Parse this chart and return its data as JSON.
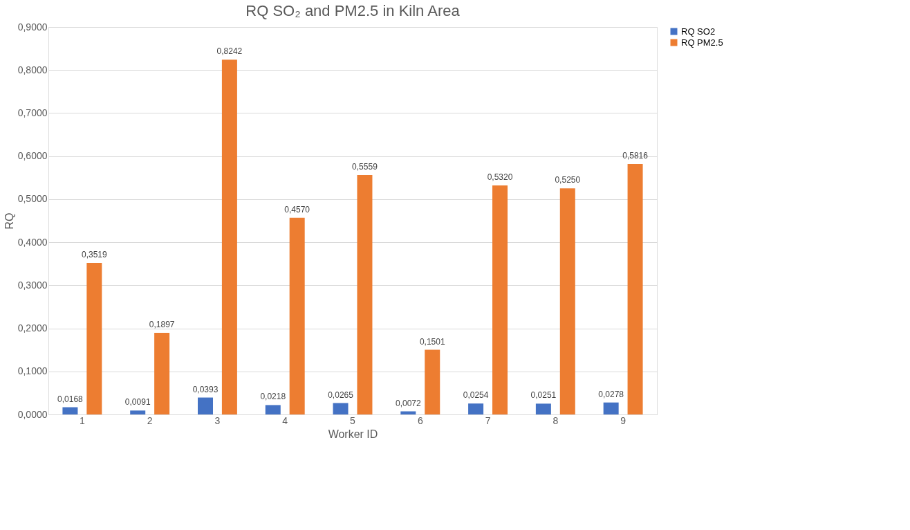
{
  "chart_data": {
    "type": "bar",
    "title": "RQ SO₂ and PM2.5 in Kiln Area",
    "xlabel": "Worker ID",
    "ylabel": "RQ",
    "categories": [
      "1",
      "2",
      "3",
      "4",
      "5",
      "6",
      "7",
      "8",
      "9"
    ],
    "series": [
      {
        "name": "RQ SO2",
        "color": "#4472c4",
        "values": [
          0.0168,
          0.0091,
          0.0393,
          0.0218,
          0.0265,
          0.0072,
          0.0254,
          0.0251,
          0.0278
        ],
        "value_labels": [
          "0,0168",
          "0,0091",
          "0,0393",
          "0,0218",
          "0,0265",
          "0,0072",
          "0,0254",
          "0,0251",
          "0,0278"
        ]
      },
      {
        "name": "RQ PM2.5",
        "color": "#ed7d31",
        "values": [
          0.3519,
          0.1897,
          0.8242,
          0.457,
          0.5559,
          0.1501,
          0.532,
          0.525,
          0.5816
        ],
        "value_labels": [
          "0,3519",
          "0,1897",
          "0,8242",
          "0,4570",
          "0,5559",
          "0,1501",
          "0,5320",
          "0,5250",
          "0,5816"
        ]
      }
    ],
    "ylim": [
      0,
      0.9
    ],
    "yticks": [
      {
        "value": 0,
        "label": "0,0000"
      },
      {
        "value": 0.1,
        "label": "0,1000"
      },
      {
        "value": 0.2,
        "label": "0,2000"
      },
      {
        "value": 0.3,
        "label": "0,3000"
      },
      {
        "value": 0.4,
        "label": "0,4000"
      },
      {
        "value": 0.5,
        "label": "0,5000"
      },
      {
        "value": 0.6,
        "label": "0,6000"
      },
      {
        "value": 0.7,
        "label": "0,7000"
      },
      {
        "value": 0.8,
        "label": "0,8000"
      },
      {
        "value": 0.9,
        "label": "0,9000"
      }
    ],
    "grid": "y",
    "legend": "right"
  }
}
